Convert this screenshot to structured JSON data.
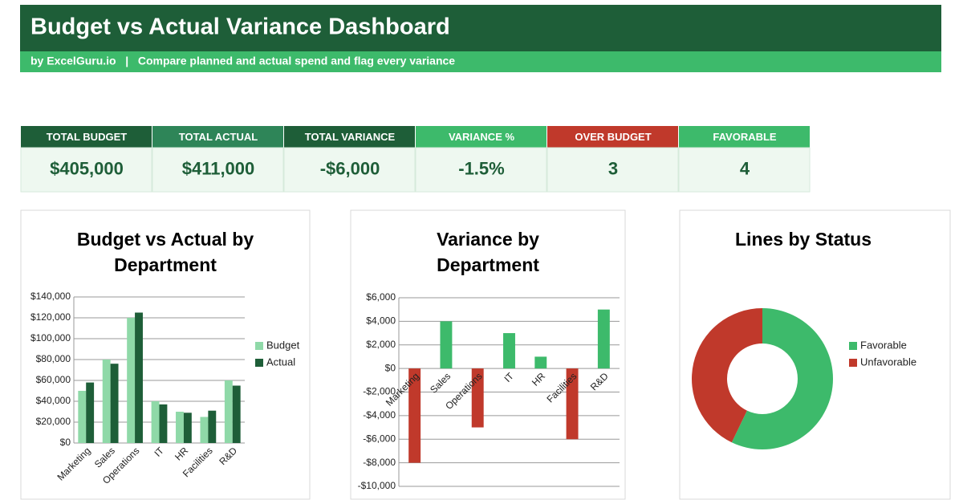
{
  "header": {
    "title": "Budget vs Actual Variance Dashboard",
    "subtitle": "by ExcelGuru.io   |   Compare planned and actual spend and flag every variance"
  },
  "kpis": [
    {
      "label": "TOTAL BUDGET",
      "value": "$405,000",
      "color": "#1e5e38"
    },
    {
      "label": "TOTAL ACTUAL",
      "value": "$411,000",
      "color": "#2e8558"
    },
    {
      "label": "TOTAL VARIANCE",
      "value": "-$6,000",
      "color": "#1e5e38"
    },
    {
      "label": "VARIANCE %",
      "value": "-1.5%",
      "color": "#3dba6b"
    },
    {
      "label": "OVER BUDGET",
      "value": "3",
      "color": "#c0392b"
    },
    {
      "label": "FAVORABLE",
      "value": "4",
      "color": "#3dba6b"
    }
  ],
  "chart_data": [
    {
      "type": "bar",
      "title": "Budget vs Actual by Department",
      "categories": [
        "Marketing",
        "Sales",
        "Operations",
        "IT",
        "HR",
        "Facilities",
        "R&D"
      ],
      "series": [
        {
          "name": "Budget",
          "color": "#8fd9a8",
          "values": [
            50000,
            80000,
            120000,
            40000,
            30000,
            25000,
            60000
          ]
        },
        {
          "name": "Actual",
          "color": "#1e5e38",
          "values": [
            58000,
            76000,
            125000,
            37000,
            29000,
            31000,
            55000
          ]
        }
      ],
      "ylim": [
        0,
        140000
      ],
      "yticks": [
        {
          "value": 0,
          "label": "$0"
        },
        {
          "value": 20000,
          "label": "$20,000"
        },
        {
          "value": 40000,
          "label": "$40,000"
        },
        {
          "value": 60000,
          "label": "$60,000"
        },
        {
          "value": 80000,
          "label": "$80,000"
        },
        {
          "value": 100000,
          "label": "$100,000"
        },
        {
          "value": 120000,
          "label": "$120,000"
        },
        {
          "value": 140000,
          "label": "$140,000"
        }
      ],
      "grid": true,
      "legend": "right"
    },
    {
      "type": "bar",
      "title": "Variance by Department",
      "categories": [
        "Marketing",
        "Sales",
        "Operations",
        "IT",
        "HR",
        "Facilities",
        "R&D"
      ],
      "values": [
        -8000,
        4000,
        -5000,
        3000,
        1000,
        -6000,
        5000
      ],
      "colors": [
        "#c0392b",
        "#3dba6b",
        "#c0392b",
        "#3dba6b",
        "#3dba6b",
        "#c0392b",
        "#3dba6b"
      ],
      "ylim": [
        -10000,
        6000
      ],
      "yticks": [
        {
          "value": -10000,
          "label": "-$10,000"
        },
        {
          "value": -8000,
          "label": "-$8,000"
        },
        {
          "value": -6000,
          "label": "-$6,000"
        },
        {
          "value": -4000,
          "label": "-$4,000"
        },
        {
          "value": -2000,
          "label": "-$2,000"
        },
        {
          "value": 0,
          "label": "$0"
        },
        {
          "value": 2000,
          "label": "$2,000"
        },
        {
          "value": 4000,
          "label": "$4,000"
        },
        {
          "value": 6000,
          "label": "$6,000"
        }
      ],
      "grid": true
    },
    {
      "type": "pie",
      "title": "Lines by Status",
      "categories": [
        "Favorable",
        "Unfavorable"
      ],
      "values": [
        4,
        3
      ],
      "colors": [
        "#3dba6b",
        "#c0392b"
      ],
      "legend": "right"
    }
  ]
}
